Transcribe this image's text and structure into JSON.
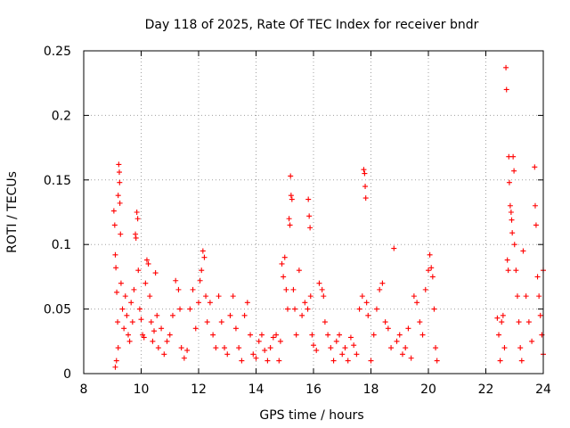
{
  "chart_data": {
    "type": "scatter",
    "title": "Day 118 of 2025, Rate Of TEC Index for receiver bndr",
    "xlabel": "GPS time / hours",
    "ylabel": "ROTI / TECUs",
    "xlim": [
      8,
      24
    ],
    "ylim": [
      0,
      0.25
    ],
    "x_ticks": [
      "8",
      "10",
      "12",
      "14",
      "16",
      "18",
      "20",
      "22",
      "24"
    ],
    "y_ticks": [
      "0",
      "0.05",
      "0.1",
      "0.15",
      "0.2",
      "0.25"
    ],
    "grid": true,
    "marker": "+",
    "color": "#ff0000",
    "series": [
      {
        "points": [
          [
            9.05,
            0.126
          ],
          [
            9.08,
            0.115
          ],
          [
            9.1,
            0.092
          ],
          [
            9.12,
            0.082
          ],
          [
            9.15,
            0.063
          ],
          [
            9.18,
            0.04
          ],
          [
            9.2,
            0.02
          ],
          [
            9.1,
            0.005
          ],
          [
            9.14,
            0.01
          ],
          [
            9.22,
            0.162
          ],
          [
            9.24,
            0.156
          ],
          [
            9.25,
            0.148
          ],
          [
            9.2,
            0.138
          ],
          [
            9.26,
            0.132
          ],
          [
            9.28,
            0.108
          ],
          [
            9.3,
            0.07
          ],
          [
            9.35,
            0.05
          ],
          [
            9.4,
            0.035
          ],
          [
            9.45,
            0.06
          ],
          [
            9.5,
            0.045
          ],
          [
            9.55,
            0.03
          ],
          [
            9.6,
            0.025
          ],
          [
            9.65,
            0.055
          ],
          [
            9.7,
            0.04
          ],
          [
            9.75,
            0.065
          ],
          [
            9.8,
            0.108
          ],
          [
            9.82,
            0.105
          ],
          [
            9.85,
            0.125
          ],
          [
            9.88,
            0.12
          ],
          [
            9.9,
            0.08
          ],
          [
            9.95,
            0.05
          ],
          [
            10.0,
            0.042
          ],
          [
            10.05,
            0.03
          ],
          [
            10.1,
            0.028
          ],
          [
            10.15,
            0.07
          ],
          [
            10.2,
            0.088
          ],
          [
            10.25,
            0.085
          ],
          [
            10.3,
            0.06
          ],
          [
            10.35,
            0.04
          ],
          [
            10.4,
            0.025
          ],
          [
            10.45,
            0.033
          ],
          [
            10.5,
            0.078
          ],
          [
            10.55,
            0.045
          ],
          [
            10.6,
            0.02
          ],
          [
            10.7,
            0.035
          ],
          [
            10.8,
            0.015
          ],
          [
            10.9,
            0.025
          ],
          [
            11.0,
            0.03
          ],
          [
            11.1,
            0.045
          ],
          [
            11.2,
            0.072
          ],
          [
            11.3,
            0.065
          ],
          [
            11.35,
            0.05
          ],
          [
            11.4,
            0.02
          ],
          [
            11.5,
            0.012
          ],
          [
            11.6,
            0.018
          ],
          [
            11.7,
            0.05
          ],
          [
            11.8,
            0.065
          ],
          [
            11.9,
            0.035
          ],
          [
            12.0,
            0.055
          ],
          [
            12.05,
            0.072
          ],
          [
            12.1,
            0.08
          ],
          [
            12.15,
            0.095
          ],
          [
            12.2,
            0.09
          ],
          [
            12.25,
            0.06
          ],
          [
            12.3,
            0.04
          ],
          [
            12.4,
            0.055
          ],
          [
            12.5,
            0.03
          ],
          [
            12.6,
            0.02
          ],
          [
            12.7,
            0.06
          ],
          [
            12.8,
            0.04
          ],
          [
            12.9,
            0.02
          ],
          [
            13.0,
            0.015
          ],
          [
            13.1,
            0.045
          ],
          [
            13.2,
            0.06
          ],
          [
            13.3,
            0.035
          ],
          [
            13.4,
            0.02
          ],
          [
            13.5,
            0.01
          ],
          [
            13.6,
            0.045
          ],
          [
            13.7,
            0.055
          ],
          [
            13.8,
            0.03
          ],
          [
            13.9,
            0.015
          ],
          [
            14.0,
            0.012
          ],
          [
            14.1,
            0.025
          ],
          [
            14.2,
            0.03
          ],
          [
            14.3,
            0.018
          ],
          [
            14.4,
            0.01
          ],
          [
            14.5,
            0.02
          ],
          [
            14.6,
            0.028
          ],
          [
            14.7,
            0.03
          ],
          [
            14.8,
            0.01
          ],
          [
            14.85,
            0.025
          ],
          [
            14.9,
            0.085
          ],
          [
            14.95,
            0.075
          ],
          [
            15.0,
            0.09
          ],
          [
            15.05,
            0.065
          ],
          [
            15.1,
            0.05
          ],
          [
            15.15,
            0.12
          ],
          [
            15.18,
            0.115
          ],
          [
            15.2,
            0.153
          ],
          [
            15.22,
            0.138
          ],
          [
            15.25,
            0.135
          ],
          [
            15.3,
            0.065
          ],
          [
            15.35,
            0.05
          ],
          [
            15.4,
            0.03
          ],
          [
            15.5,
            0.08
          ],
          [
            15.6,
            0.045
          ],
          [
            15.7,
            0.055
          ],
          [
            15.8,
            0.05
          ],
          [
            15.82,
            0.135
          ],
          [
            15.85,
            0.122
          ],
          [
            15.88,
            0.113
          ],
          [
            15.9,
            0.06
          ],
          [
            15.95,
            0.03
          ],
          [
            16.0,
            0.022
          ],
          [
            16.1,
            0.018
          ],
          [
            16.2,
            0.07
          ],
          [
            16.3,
            0.065
          ],
          [
            16.35,
            0.06
          ],
          [
            16.4,
            0.04
          ],
          [
            16.5,
            0.03
          ],
          [
            16.6,
            0.02
          ],
          [
            16.7,
            0.01
          ],
          [
            16.8,
            0.025
          ],
          [
            16.9,
            0.03
          ],
          [
            17.0,
            0.015
          ],
          [
            17.1,
            0.02
          ],
          [
            17.2,
            0.01
          ],
          [
            17.3,
            0.028
          ],
          [
            17.4,
            0.022
          ],
          [
            17.5,
            0.015
          ],
          [
            17.6,
            0.05
          ],
          [
            17.7,
            0.06
          ],
          [
            17.75,
            0.158
          ],
          [
            17.78,
            0.155
          ],
          [
            17.8,
            0.145
          ],
          [
            17.82,
            0.136
          ],
          [
            17.85,
            0.055
          ],
          [
            17.9,
            0.045
          ],
          [
            18.0,
            0.01
          ],
          [
            18.1,
            0.03
          ],
          [
            18.2,
            0.05
          ],
          [
            18.3,
            0.065
          ],
          [
            18.4,
            0.07
          ],
          [
            18.5,
            0.04
          ],
          [
            18.6,
            0.035
          ],
          [
            18.7,
            0.02
          ],
          [
            18.8,
            0.097
          ],
          [
            18.9,
            0.025
          ],
          [
            19.0,
            0.03
          ],
          [
            19.1,
            0.015
          ],
          [
            19.2,
            0.02
          ],
          [
            19.3,
            0.035
          ],
          [
            19.4,
            0.012
          ],
          [
            19.5,
            0.06
          ],
          [
            19.6,
            0.055
          ],
          [
            19.7,
            0.04
          ],
          [
            19.8,
            0.03
          ],
          [
            19.9,
            0.065
          ],
          [
            20.0,
            0.08
          ],
          [
            20.05,
            0.092
          ],
          [
            20.1,
            0.082
          ],
          [
            20.15,
            0.075
          ],
          [
            20.2,
            0.05
          ],
          [
            20.25,
            0.02
          ],
          [
            20.3,
            0.01
          ],
          [
            22.4,
            0.043
          ],
          [
            22.45,
            0.03
          ],
          [
            22.5,
            0.01
          ],
          [
            22.55,
            0.04
          ],
          [
            22.6,
            0.045
          ],
          [
            22.65,
            0.02
          ],
          [
            22.7,
            0.237
          ],
          [
            22.72,
            0.22
          ],
          [
            22.75,
            0.088
          ],
          [
            22.78,
            0.08
          ],
          [
            22.8,
            0.168
          ],
          [
            22.82,
            0.148
          ],
          [
            22.85,
            0.13
          ],
          [
            22.88,
            0.125
          ],
          [
            22.9,
            0.119
          ],
          [
            22.92,
            0.109
          ],
          [
            22.95,
            0.168
          ],
          [
            22.98,
            0.157
          ],
          [
            23.0,
            0.1
          ],
          [
            23.05,
            0.08
          ],
          [
            23.1,
            0.06
          ],
          [
            23.15,
            0.04
          ],
          [
            23.2,
            0.02
          ],
          [
            23.25,
            0.01
          ],
          [
            23.3,
            0.095
          ],
          [
            23.4,
            0.06
          ],
          [
            23.5,
            0.04
          ],
          [
            23.6,
            0.025
          ],
          [
            23.7,
            0.16
          ],
          [
            23.72,
            0.13
          ],
          [
            23.75,
            0.115
          ],
          [
            23.8,
            0.075
          ],
          [
            23.85,
            0.06
          ],
          [
            23.9,
            0.045
          ],
          [
            23.95,
            0.03
          ],
          [
            24.0,
            0.08
          ],
          [
            24.0,
            0.015
          ]
        ]
      }
    ]
  }
}
